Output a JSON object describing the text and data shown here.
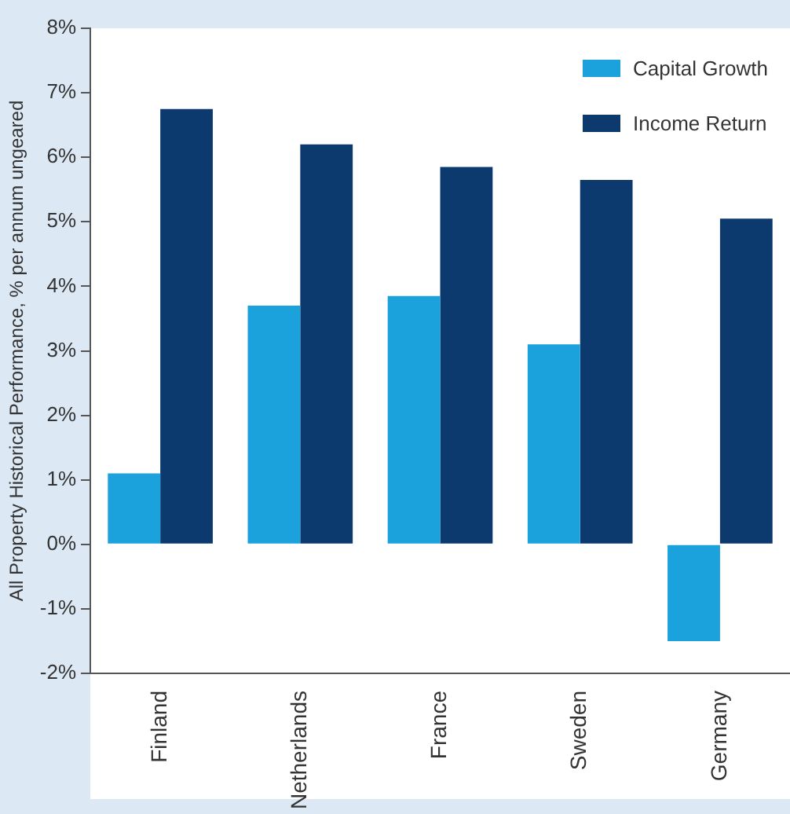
{
  "chart_data": {
    "type": "bar",
    "ylabel": "All Property Historical Performance, % per annum ungeared",
    "categories": [
      "Finland",
      "Netherlands",
      "France",
      "Sweden",
      "Germany"
    ],
    "series": [
      {
        "name": "Capital Growth",
        "color": "#1ba1dc",
        "values": [
          1.1,
          3.7,
          3.85,
          3.1,
          -1.5
        ]
      },
      {
        "name": "Income Return",
        "color": "#0c3a6e",
        "values": [
          6.75,
          6.2,
          5.85,
          5.65,
          5.05
        ]
      }
    ],
    "ylim": [
      -2,
      8
    ],
    "yticks": [
      {
        "value": -2,
        "label": "-2%"
      },
      {
        "value": -1,
        "label": "-1%"
      },
      {
        "value": 0,
        "label": "0%"
      },
      {
        "value": 1,
        "label": "1%"
      },
      {
        "value": 2,
        "label": "2%"
      },
      {
        "value": 3,
        "label": "3%"
      },
      {
        "value": 4,
        "label": "4%"
      },
      {
        "value": 5,
        "label": "5%"
      },
      {
        "value": 6,
        "label": "6%"
      },
      {
        "value": 7,
        "label": "7%"
      },
      {
        "value": 8,
        "label": "8%"
      }
    ],
    "grid": false,
    "legend": "top right"
  }
}
